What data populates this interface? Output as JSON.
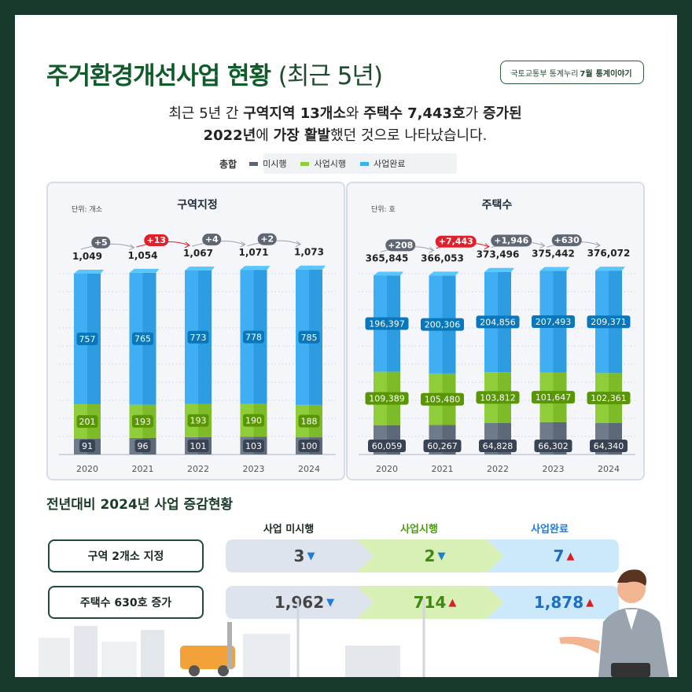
{
  "header": {
    "title": "주거환경개선사업 현황",
    "title_sub": "(최근 5년)",
    "source_prefix": "국토교통부 통계누리",
    "source_month": "7월",
    "source_suffix": "통계이야기"
  },
  "summary": {
    "line1_a": "최근 5년 간 ",
    "line1_b": "구역지역 13개소",
    "line1_c": "와 ",
    "line1_d": "주택수 7,443호",
    "line1_e": "가 ",
    "line1_f": "증가된",
    "line2_a": "2022년",
    "line2_b": "에 ",
    "line2_c": "가장 활발",
    "line2_d": "했던 것으로 나타났습니다."
  },
  "legend": {
    "title": "총합",
    "items": [
      "미시행",
      "사업시행",
      "사업완료"
    ]
  },
  "colors": {
    "unstarted": "#6f7a8a",
    "in_progress": "#8fce3a",
    "completed": "#40aef2",
    "title_green": "#0f5b2a",
    "increase_red": "#e0202a",
    "increase_gray": "#5f6773"
  },
  "chart_data": [
    {
      "type": "bar",
      "stacked": true,
      "title": "구역지정",
      "unit": "단위: 개소",
      "categories": [
        "2020",
        "2021",
        "2022",
        "2023",
        "2024"
      ],
      "series": [
        {
          "name": "미시행",
          "values": [
            91,
            96,
            101,
            103,
            100
          ]
        },
        {
          "name": "사업시행",
          "values": [
            201,
            193,
            193,
            190,
            188
          ]
        },
        {
          "name": "사업완료",
          "values": [
            757,
            765,
            773,
            778,
            785
          ]
        }
      ],
      "totals": [
        "1,049",
        "1,054",
        "1,067",
        "1,071",
        "1,073"
      ],
      "increases": [
        "+5",
        "+13",
        "+4",
        "+2"
      ],
      "max_increase_index": 1,
      "ylim": [
        0,
        1140
      ]
    },
    {
      "type": "bar",
      "stacked": true,
      "title": "주택수",
      "unit": "단위: 호",
      "categories": [
        "2020",
        "2021",
        "2022",
        "2023",
        "2024"
      ],
      "series": [
        {
          "name": "미시행",
          "values": [
            60059,
            60267,
            64828,
            66302,
            64340
          ]
        },
        {
          "name": "사업시행",
          "values": [
            109389,
            105480,
            103812,
            101647,
            102361
          ]
        },
        {
          "name": "사업완료",
          "values": [
            196397,
            200306,
            204856,
            207493,
            209371
          ]
        }
      ],
      "totals": [
        "365,845",
        "366,053",
        "373,496",
        "375,442",
        "376,072"
      ],
      "increases": [
        "+208",
        "+7,443",
        "+1,946",
        "+630"
      ],
      "max_increase_index": 1,
      "ylim": [
        0,
        402000
      ]
    }
  ],
  "comparison": {
    "title": "전년대비 2024년 사업 증감현황",
    "columns": [
      "사업 미시행",
      "사업시행",
      "사업완료"
    ],
    "rows": [
      {
        "label": "구역 2개소 지정",
        "values": [
          "3",
          "2",
          "7"
        ],
        "directions": [
          "down",
          "down",
          "up"
        ]
      },
      {
        "label": "주택수 630호 증가",
        "values": [
          "1,962",
          "714",
          "1,878"
        ],
        "directions": [
          "down",
          "up",
          "up"
        ]
      }
    ]
  }
}
